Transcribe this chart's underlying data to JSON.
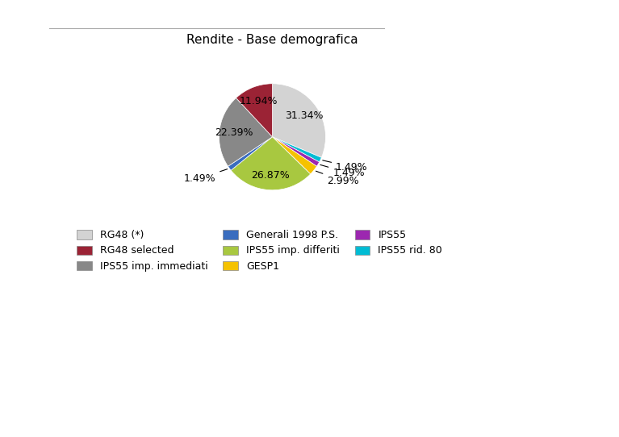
{
  "title": "Rendite - Base demografica",
  "slices": [
    {
      "label": "RG48 (*)",
      "pct": 31.34,
      "color": "#d3d3d3"
    },
    {
      "label": "IPS55 rid. 80",
      "pct": 1.49,
      "color": "#00bcd4"
    },
    {
      "label": "IPS55",
      "pct": 1.49,
      "color": "#9c27b0"
    },
    {
      "label": "GESP1",
      "pct": 2.99,
      "color": "#f5c200"
    },
    {
      "label": "IPS55 imp. differiti",
      "pct": 26.87,
      "color": "#a8c840"
    },
    {
      "label": "Generali 1998 P.S.",
      "pct": 1.49,
      "color": "#3a6dbf"
    },
    {
      "label": "IPS55 imp. immediati",
      "pct": 22.39,
      "color": "#888888"
    },
    {
      "label": "RG48 selected",
      "pct": 11.94,
      "color": "#9b2335"
    }
  ],
  "legend_order": [
    "RG48 (*)",
    "RG48 selected",
    "IPS55 imp. immediati",
    "Generali 1998 P.S.",
    "IPS55 imp. differiti",
    "GESP1",
    "IPS55",
    "IPS55 rid. 80"
  ],
  "bg_color": "#ffffff",
  "title_fontsize": 11,
  "label_fontsize": 9
}
